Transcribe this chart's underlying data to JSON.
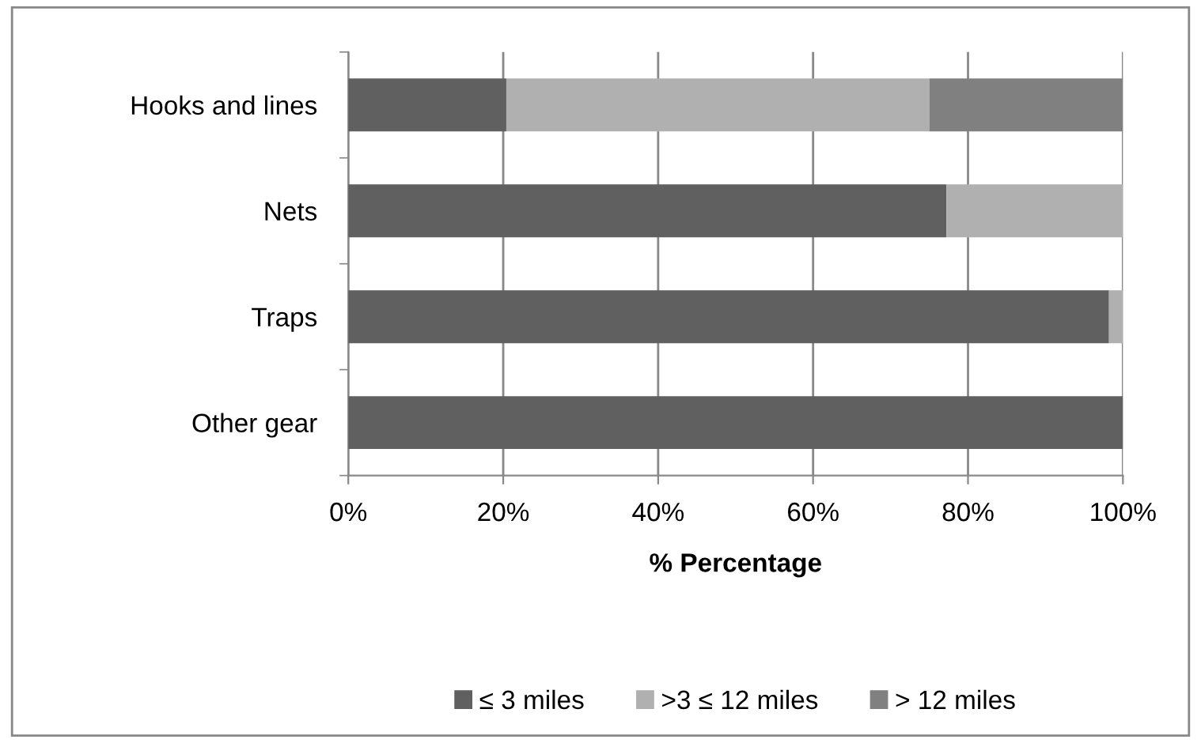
{
  "chart_data": {
    "type": "bar",
    "orientation": "horizontal",
    "stacked": true,
    "xlabel": "% Percentage",
    "categories": [
      "Hooks and lines",
      "Nets",
      "Traps",
      "Other gear"
    ],
    "series": [
      {
        "name": "≤ 3 miles",
        "color": "#606060",
        "values": [
          20.4,
          77.2,
          98.2,
          100
        ]
      },
      {
        "name": ">3 ≤ 12 miles",
        "color": "#b0b0b0",
        "values": [
          54.6,
          22.8,
          1.8,
          0
        ]
      },
      {
        "name": "> 12 miles",
        "color": "#808080",
        "values": [
          25,
          0,
          0,
          0
        ]
      }
    ],
    "xlim": [
      0,
      100
    ],
    "xticks": [
      {
        "value": 0,
        "label": "0%"
      },
      {
        "value": 20,
        "label": "20%"
      },
      {
        "value": 40,
        "label": "40%"
      },
      {
        "value": 60,
        "label": "60%"
      },
      {
        "value": 80,
        "label": "80%"
      },
      {
        "value": 100,
        "label": "100%"
      }
    ],
    "grid": "x",
    "legend": "bottom"
  }
}
